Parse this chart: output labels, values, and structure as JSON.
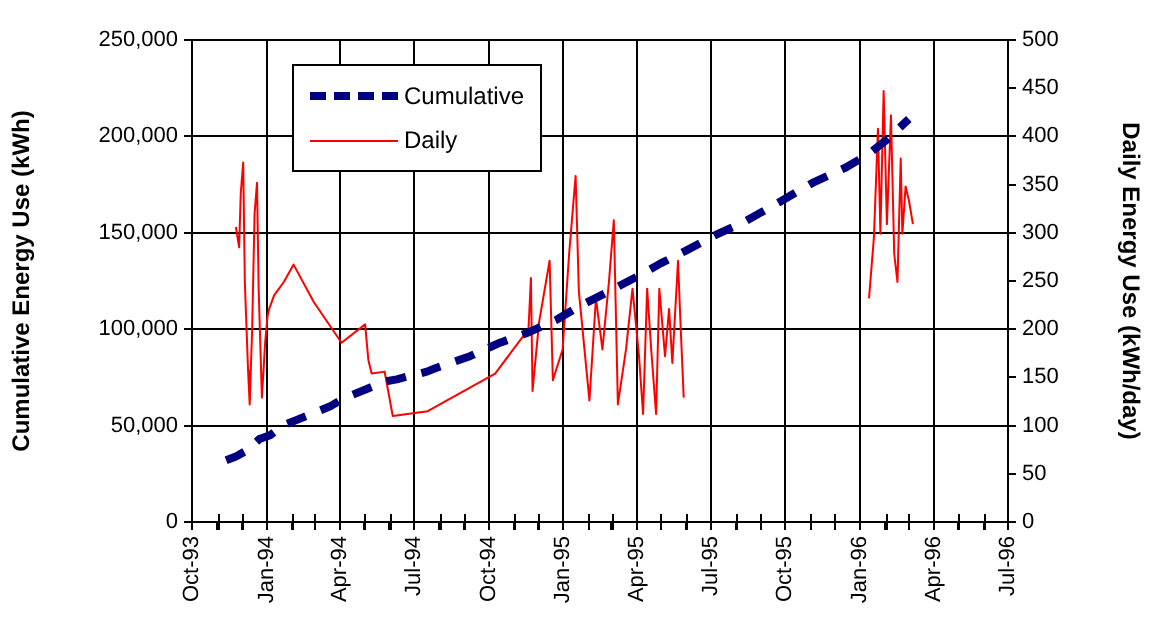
{
  "chart_data": {
    "type": "line",
    "ylabel": "Cumulative Energy Use (kWh)",
    "y2label": "Daily Energy Use (kWh/day)",
    "xlim": [
      "1993-10-01",
      "1996-07-01"
    ],
    "xticks": [
      {
        "value": "1993-10-01",
        "label": "Oct-93"
      },
      {
        "value": "1993-11-01",
        "label": null
      },
      {
        "value": "1993-12-01",
        "label": null
      },
      {
        "value": "1994-01-01",
        "label": "Jan-94"
      },
      {
        "value": "1994-02-01",
        "label": null
      },
      {
        "value": "1994-03-01",
        "label": null
      },
      {
        "value": "1994-04-01",
        "label": "Apr-94"
      },
      {
        "value": "1994-05-01",
        "label": null
      },
      {
        "value": "1994-06-01",
        "label": null
      },
      {
        "value": "1994-07-01",
        "label": "Jul-94"
      },
      {
        "value": "1994-08-01",
        "label": null
      },
      {
        "value": "1994-09-01",
        "label": null
      },
      {
        "value": "1994-10-01",
        "label": "Oct-94"
      },
      {
        "value": "1994-11-01",
        "label": null
      },
      {
        "value": "1994-12-01",
        "label": null
      },
      {
        "value": "1995-01-01",
        "label": "Jan-95"
      },
      {
        "value": "1995-02-01",
        "label": null
      },
      {
        "value": "1995-03-01",
        "label": null
      },
      {
        "value": "1995-04-01",
        "label": "Apr-95"
      },
      {
        "value": "1995-05-01",
        "label": null
      },
      {
        "value": "1995-06-01",
        "label": null
      },
      {
        "value": "1995-07-01",
        "label": "Jul-95"
      },
      {
        "value": "1995-08-01",
        "label": null
      },
      {
        "value": "1995-09-01",
        "label": null
      },
      {
        "value": "1995-10-01",
        "label": "Oct-95"
      },
      {
        "value": "1995-11-01",
        "label": null
      },
      {
        "value": "1995-12-01",
        "label": null
      },
      {
        "value": "1996-01-01",
        "label": "Jan-96"
      },
      {
        "value": "1996-02-01",
        "label": null
      },
      {
        "value": "1996-03-01",
        "label": null
      },
      {
        "value": "1996-04-01",
        "label": "Apr-96"
      },
      {
        "value": "1996-05-01",
        "label": null
      },
      {
        "value": "1996-06-01",
        "label": null
      },
      {
        "value": "1996-07-01",
        "label": "Jul-96"
      }
    ],
    "ylim": [
      0,
      250000
    ],
    "yticks": [
      0,
      {
        "value": 50000,
        "label": "50,000"
      },
      {
        "value": 100000,
        "label": "100,000"
      },
      {
        "value": 150000,
        "label": "150,000"
      },
      {
        "value": 200000,
        "label": "200,000"
      },
      {
        "value": 250000,
        "label": "250,000"
      }
    ],
    "y2lim": [
      0,
      500
    ],
    "y2ticks": [
      0,
      50,
      100,
      150,
      200,
      250,
      300,
      350,
      400,
      450,
      500
    ],
    "grid": true,
    "legend": "top left",
    "marker": "none",
    "series": [
      {
        "name": "Cumulative",
        "color": "#000080",
        "line_style": "dashed",
        "x": [
          "1993-11-12",
          "1993-11-24",
          "1993-12-07",
          "1993-12-23",
          "1994-01-05",
          "1994-01-21",
          "1994-02-07",
          "1994-03-20",
          "1994-04-05",
          "1994-05-04",
          "1994-05-28",
          "1994-06-10",
          "1994-07-17",
          "1994-07-29",
          "1994-09-08",
          "1994-10-15",
          "1994-11-17",
          "1994-12-24",
          "1995-01-21",
          "1995-02-23",
          "1995-04-05",
          "1995-04-30",
          "1995-06-02",
          "1995-07-08",
          "1995-08-13",
          "1995-09-24",
          "1995-11-04",
          "1995-12-15",
          "1996-01-12",
          "1996-02-02",
          "1996-03-01"
        ],
        "values": [
          32000,
          34000,
          37000,
          43000,
          45000,
          50000,
          53000,
          60000,
          64000,
          69000,
          73000,
          74000,
          78000,
          80000,
          86000,
          93000,
          98000,
          105000,
          112000,
          119000,
          128000,
          134000,
          141000,
          149000,
          156000,
          166000,
          176000,
          184000,
          191000,
          198000,
          209000
        ]
      },
      {
        "name": "Daily",
        "color": "#ff0000",
        "axis": "y2",
        "line_style": "solid",
        "x": [
          "1993-11-24",
          "1993-11-28",
          "1993-11-30",
          "1993-12-03",
          "1993-12-05",
          "1993-12-09",
          "1993-12-11",
          "1993-12-14",
          "1993-12-17",
          "1993-12-20",
          "1993-12-22",
          "1993-12-26",
          "1993-12-30",
          "1994-01-02",
          "1994-01-04",
          "1994-01-10",
          "1994-01-22",
          "1994-02-03",
          "1994-02-28",
          "1994-04-03",
          "1994-05-02",
          "1994-05-06",
          "1994-05-10",
          "1994-05-26",
          "1994-06-05",
          "1994-07-18",
          "1994-10-09",
          "1994-11-19",
          "1994-11-22",
          "1994-11-24",
          "1994-12-02",
          "1994-12-15",
          "1994-12-19",
          "1994-12-31",
          "1995-01-08",
          "1995-01-16",
          "1995-01-20",
          "1995-02-02",
          "1995-02-10",
          "1995-02-18",
          "1995-02-26",
          "1995-03-04",
          "1995-03-09",
          "1995-03-19",
          "1995-03-27",
          "1995-04-04",
          "1995-04-09",
          "1995-04-14",
          "1995-04-19",
          "1995-04-25",
          "1995-04-29",
          "1995-05-06",
          "1995-05-11",
          "1995-05-15",
          "1995-05-22",
          "1995-05-25",
          "1995-05-29",
          "1995-09-01",
          "1996-01-12",
          "1996-01-18",
          "1996-01-23",
          "1996-01-26",
          "1996-01-30",
          "1996-02-03",
          "1996-02-08",
          "1996-02-12",
          "1996-02-16",
          "1996-02-20",
          "1996-02-22",
          "1996-02-26",
          "1996-03-01",
          "1996-03-06"
        ],
        "values": [
          306,
          285,
          341,
          373,
          249,
          157,
          122,
          200,
          320,
          352,
          242,
          129,
          186,
          214,
          221,
          235,
          249,
          267,
          228,
          186,
          205,
          168,
          154,
          156,
          110,
          115,
          154,
          200,
          253,
          136,
          207,
          271,
          147,
          179,
          278,
          359,
          239,
          126,
          232,
          179,
          249,
          313,
          122,
          179,
          242,
          172,
          112,
          242,
          179,
          112,
          242,
          172,
          221,
          165,
          271,
          207,
          129,
          null,
          232,
          295,
          408,
          299,
          447,
          309,
          422,
          278,
          249,
          377,
          299,
          348,
          334,
          309
        ]
      }
    ]
  }
}
